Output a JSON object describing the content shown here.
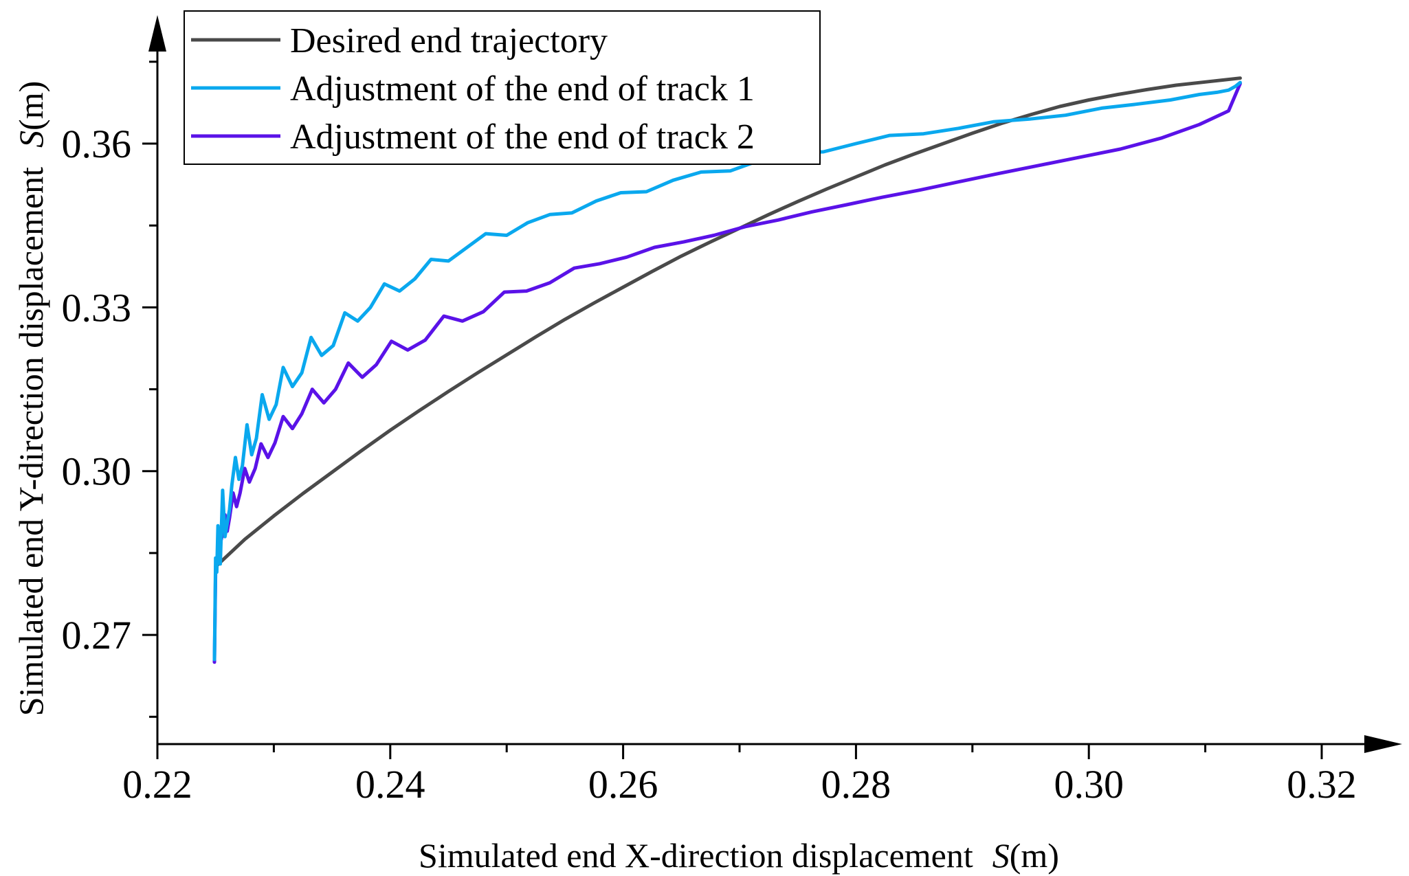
{
  "chart_data": {
    "type": "line",
    "title": "",
    "xlabel": {
      "prefix": "Simulated end X-direction displacement",
      "symbol": "S",
      "unit": "(m)"
    },
    "ylabel": {
      "prefix": "Simulated end Y-direction displacement",
      "symbol": "S",
      "unit": "(m)"
    },
    "xlim": [
      0.22,
      0.32
    ],
    "ylim": [
      0.25,
      0.3775
    ],
    "xticks": [
      "0.22",
      "0.24",
      "0.26",
      "0.28",
      "0.30",
      "0.32"
    ],
    "yticks": [
      "0.27",
      "0.30",
      "0.33",
      "0.36"
    ],
    "legend_position": "top-left",
    "series": [
      {
        "name": "Desired end trajectory",
        "color": "#4a4a4a",
        "x": [
          0.225,
          0.2275,
          0.23,
          0.2325,
          0.235,
          0.2375,
          0.24,
          0.2425,
          0.245,
          0.2475,
          0.25,
          0.2525,
          0.255,
          0.2575,
          0.26,
          0.2625,
          0.265,
          0.2675,
          0.27,
          0.2725,
          0.275,
          0.2775,
          0.28,
          0.2825,
          0.285,
          0.2875,
          0.29,
          0.2925,
          0.295,
          0.2975,
          0.3,
          0.3025,
          0.305,
          0.3075,
          0.31,
          0.313
        ],
        "y": [
          0.2825,
          0.2875,
          0.2918,
          0.2959,
          0.2998,
          0.3037,
          0.3075,
          0.3111,
          0.3146,
          0.318,
          0.3213,
          0.3246,
          0.3278,
          0.3308,
          0.3337,
          0.3366,
          0.3394,
          0.342,
          0.3445,
          0.347,
          0.3494,
          0.3517,
          0.3539,
          0.3561,
          0.3581,
          0.36,
          0.3619,
          0.3637,
          0.3653,
          0.3668,
          0.368,
          0.369,
          0.3699,
          0.3707,
          0.3713,
          0.372
        ]
      },
      {
        "name": "Adjustment of the end of track 1",
        "color": "#0aa8ee",
        "x": [
          0.2249,
          0.225,
          0.2251,
          0.2252,
          0.2253,
          0.2254,
          0.2256,
          0.2258,
          0.226,
          0.2262,
          0.2264,
          0.2267,
          0.227,
          0.2273,
          0.2277,
          0.2281,
          0.2285,
          0.229,
          0.2296,
          0.2302,
          0.2308,
          0.2316,
          0.2324,
          0.2332,
          0.2341,
          0.2351,
          0.2361,
          0.2372,
          0.2383,
          0.2395,
          0.2408,
          0.2421,
          0.2435,
          0.245,
          0.2466,
          0.2482,
          0.25,
          0.2518,
          0.2537,
          0.2556,
          0.2577,
          0.2598,
          0.262,
          0.2643,
          0.2667,
          0.2692,
          0.2718,
          0.2745,
          0.2772,
          0.28,
          0.2829,
          0.2858,
          0.2888,
          0.2918,
          0.2949,
          0.298,
          0.3011,
          0.304,
          0.307,
          0.3095,
          0.311,
          0.312,
          0.3126,
          0.313
        ],
        "y": [
          0.2655,
          0.2841,
          0.2815,
          0.29,
          0.286,
          0.283,
          0.2965,
          0.288,
          0.2905,
          0.293,
          0.2975,
          0.3025,
          0.2985,
          0.301,
          0.3085,
          0.303,
          0.306,
          0.314,
          0.3095,
          0.3122,
          0.319,
          0.3155,
          0.318,
          0.3245,
          0.3212,
          0.323,
          0.329,
          0.3275,
          0.33,
          0.3343,
          0.333,
          0.3352,
          0.3388,
          0.3385,
          0.341,
          0.3435,
          0.3432,
          0.3455,
          0.347,
          0.3473,
          0.3495,
          0.351,
          0.3512,
          0.3533,
          0.3548,
          0.355,
          0.357,
          0.3583,
          0.3585,
          0.36,
          0.3615,
          0.3618,
          0.3628,
          0.364,
          0.3645,
          0.3652,
          0.3665,
          0.3672,
          0.368,
          0.369,
          0.3694,
          0.3698,
          0.3705,
          0.3712
        ]
      },
      {
        "name": "Adjustment of the end of track 2",
        "color": "#5a12e8",
        "x": [
          0.2249,
          0.225,
          0.2251,
          0.2252,
          0.2254,
          0.2256,
          0.2258,
          0.226,
          0.2262,
          0.2265,
          0.2268,
          0.2271,
          0.2275,
          0.2279,
          0.2284,
          0.2289,
          0.2295,
          0.2301,
          0.2308,
          0.2316,
          0.2324,
          0.2333,
          0.2343,
          0.2353,
          0.2364,
          0.2376,
          0.2388,
          0.2401,
          0.2415,
          0.243,
          0.2446,
          0.2462,
          0.248,
          0.2498,
          0.2517,
          0.2537,
          0.2558,
          0.258,
          0.2603,
          0.2627,
          0.2652,
          0.2678,
          0.2705,
          0.2733,
          0.2762,
          0.2792,
          0.2823,
          0.2855,
          0.2888,
          0.2922,
          0.2957,
          0.2992,
          0.3027,
          0.3062,
          0.3095,
          0.312,
          0.313
        ],
        "y": [
          0.265,
          0.282,
          0.283,
          0.2848,
          0.2868,
          0.2885,
          0.292,
          0.289,
          0.2915,
          0.296,
          0.2935,
          0.296,
          0.3005,
          0.298,
          0.3005,
          0.305,
          0.3025,
          0.3052,
          0.31,
          0.3078,
          0.3105,
          0.315,
          0.3125,
          0.315,
          0.3198,
          0.3172,
          0.3195,
          0.3238,
          0.3222,
          0.324,
          0.3284,
          0.3275,
          0.3292,
          0.3328,
          0.333,
          0.3345,
          0.3372,
          0.338,
          0.3392,
          0.341,
          0.342,
          0.3432,
          0.3448,
          0.346,
          0.3475,
          0.3488,
          0.3502,
          0.3515,
          0.353,
          0.3545,
          0.356,
          0.3575,
          0.359,
          0.361,
          0.3635,
          0.366,
          0.371
        ]
      }
    ]
  }
}
